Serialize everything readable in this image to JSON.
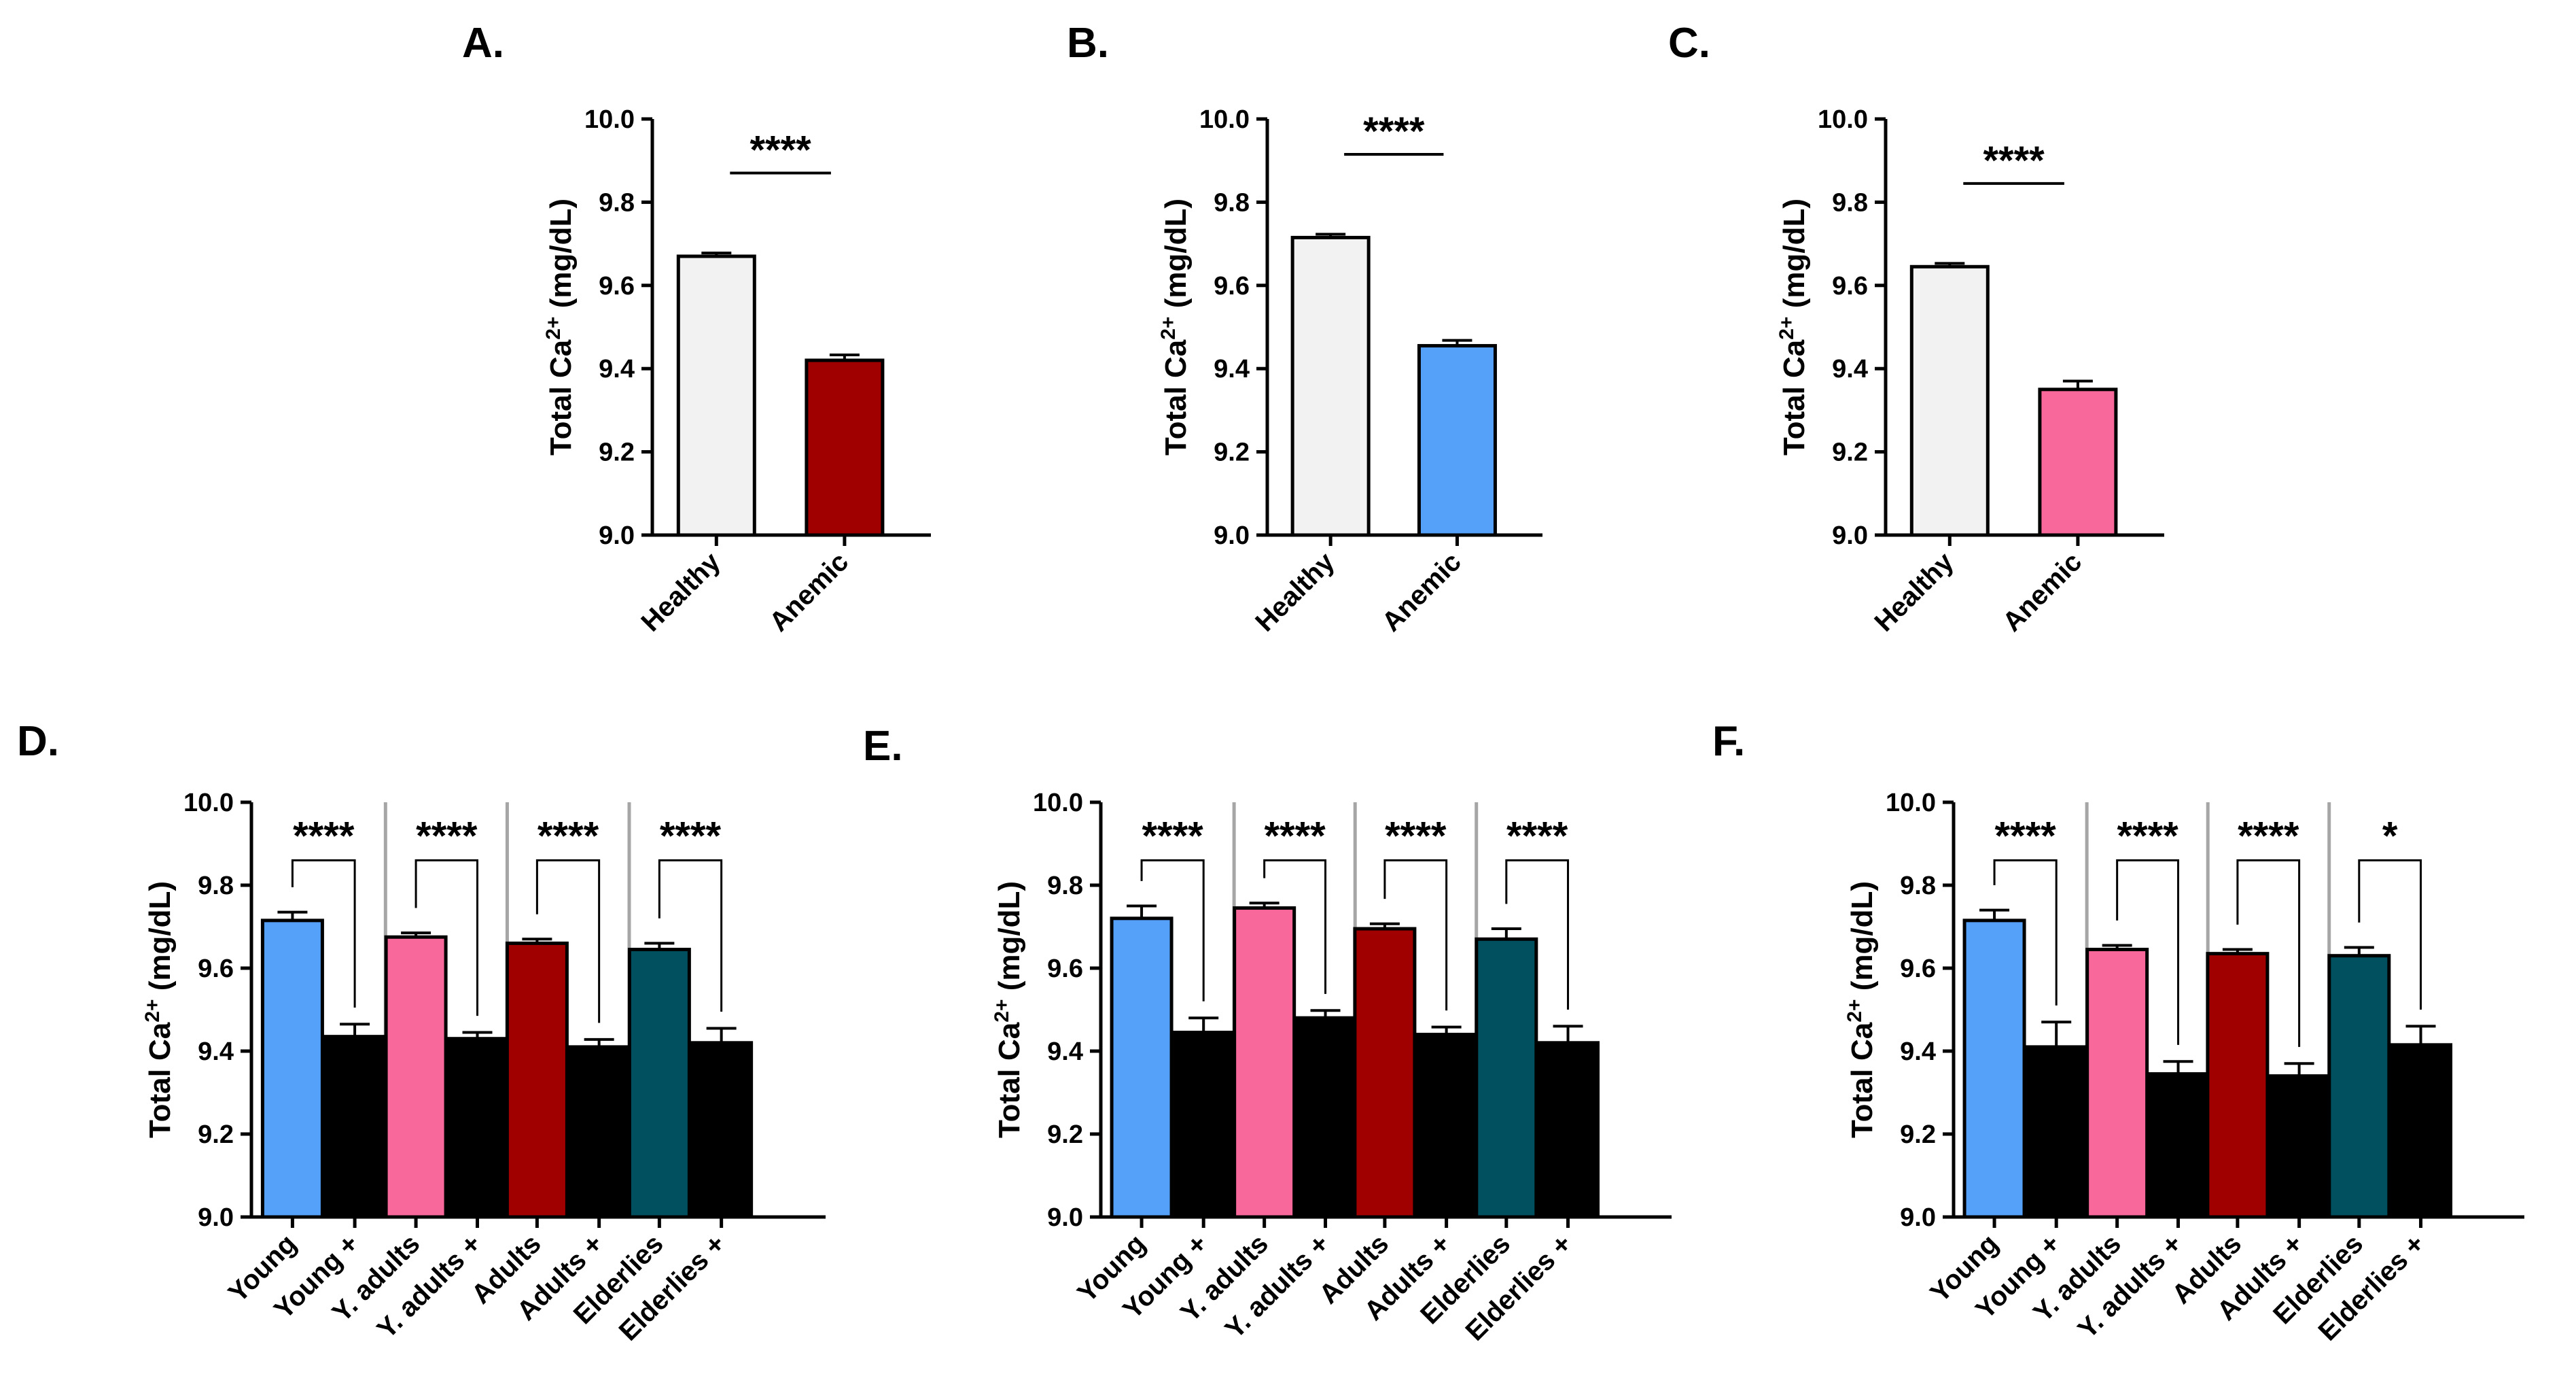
{
  "figure": {
    "panel_letters": [
      "A.",
      "B.",
      "C.",
      "D.",
      "E.",
      "F."
    ]
  },
  "colors": {
    "healthy_fill": "#f2f2f2",
    "dark_red": "#a00000",
    "blue": "#55a1fa",
    "pink": "#f8689a",
    "teal": "#00505f",
    "black": "#000000",
    "separator": "#a6a6a6"
  },
  "chart_data": [
    {
      "panel": "A.",
      "type": "bar",
      "ylabel_main": "Total Ca",
      "ylabel_sup": "2+",
      "ylabel_unit": " (mg/dL)",
      "ylim": [
        9.0,
        10.0
      ],
      "yticks": [
        "9.0",
        "9.2",
        "9.4",
        "9.6",
        "9.8",
        "10.0"
      ],
      "categories": [
        "Healthy",
        "Anemic"
      ],
      "values": [
        9.67,
        9.42
      ],
      "errors": [
        0.008,
        0.013
      ],
      "colors": [
        "#f2f2f2",
        "#a00000"
      ],
      "significance": [
        {
          "between": [
            0,
            1
          ],
          "label": "****"
        }
      ]
    },
    {
      "panel": "B.",
      "type": "bar",
      "ylabel_main": "Total Ca",
      "ylabel_sup": "2+",
      "ylabel_unit": " (mg/dL)",
      "ylim": [
        9.0,
        10.0
      ],
      "yticks": [
        "9.0",
        "9.2",
        "9.4",
        "9.6",
        "9.8",
        "10.0"
      ],
      "categories": [
        "Healthy",
        "Anemic"
      ],
      "values": [
        9.715,
        9.455
      ],
      "errors": [
        0.008,
        0.013
      ],
      "colors": [
        "#f2f2f2",
        "#55a1fa"
      ],
      "significance": [
        {
          "between": [
            0,
            1
          ],
          "label": "****"
        }
      ]
    },
    {
      "panel": "C.",
      "type": "bar",
      "ylabel_main": "Total Ca",
      "ylabel_sup": "2+",
      "ylabel_unit": " (mg/dL)",
      "ylim": [
        9.0,
        10.0
      ],
      "yticks": [
        "9.0",
        "9.2",
        "9.4",
        "9.6",
        "9.8",
        "10.0"
      ],
      "categories": [
        "Healthy",
        "Anemic"
      ],
      "values": [
        9.645,
        9.35
      ],
      "errors": [
        0.008,
        0.02
      ],
      "colors": [
        "#f2f2f2",
        "#f8689a"
      ],
      "significance": [
        {
          "between": [
            0,
            1
          ],
          "label": "****"
        }
      ]
    },
    {
      "panel": "D.",
      "type": "bar",
      "ylabel_main": "Total Ca",
      "ylabel_sup": "2+",
      "ylabel_unit": " (mg/dL)",
      "ylim": [
        9.0,
        10.0
      ],
      "yticks": [
        "9.0",
        "9.2",
        "9.4",
        "9.6",
        "9.8",
        "10.0"
      ],
      "categories": [
        "Young",
        "Young +",
        "Y. adults",
        "Y. adults +",
        "Adults",
        "Adults +",
        "Elderlies",
        "Elderlies +"
      ],
      "values": [
        9.715,
        9.435,
        9.675,
        9.43,
        9.66,
        9.41,
        9.645,
        9.42
      ],
      "errors": [
        0.02,
        0.03,
        0.01,
        0.015,
        0.01,
        0.018,
        0.015,
        0.035
      ],
      "colors": [
        "#55a1fa",
        "#000000",
        "#f8689a",
        "#000000",
        "#a00000",
        "#000000",
        "#00505f",
        "#000000"
      ],
      "significance": [
        {
          "between": [
            0,
            1
          ],
          "label": "****"
        },
        {
          "between": [
            2,
            3
          ],
          "label": "****"
        },
        {
          "between": [
            4,
            5
          ],
          "label": "****"
        },
        {
          "between": [
            6,
            7
          ],
          "label": "****"
        }
      ]
    },
    {
      "panel": "E.",
      "type": "bar",
      "ylabel_main": "Total Ca",
      "ylabel_sup": "2+",
      "ylabel_unit": " (mg/dL)",
      "ylim": [
        9.0,
        10.0
      ],
      "yticks": [
        "9.0",
        "9.2",
        "9.4",
        "9.6",
        "9.8",
        "10.0"
      ],
      "categories": [
        "Young",
        "Young +",
        "Y. adults",
        "Y. adults +",
        "Adults",
        "Adults +",
        "Elderlies",
        "Elderlies +"
      ],
      "values": [
        9.72,
        9.445,
        9.745,
        9.48,
        9.695,
        9.44,
        9.67,
        9.42
      ],
      "errors": [
        0.03,
        0.035,
        0.012,
        0.018,
        0.012,
        0.018,
        0.025,
        0.04
      ],
      "colors": [
        "#55a1fa",
        "#000000",
        "#f8689a",
        "#000000",
        "#a00000",
        "#000000",
        "#00505f",
        "#000000"
      ],
      "significance": [
        {
          "between": [
            0,
            1
          ],
          "label": "****"
        },
        {
          "between": [
            2,
            3
          ],
          "label": "****"
        },
        {
          "between": [
            4,
            5
          ],
          "label": "****"
        },
        {
          "between": [
            6,
            7
          ],
          "label": "****"
        }
      ]
    },
    {
      "panel": "F.",
      "type": "bar",
      "ylabel_main": "Total Ca",
      "ylabel_sup": "2+",
      "ylabel_unit": " (mg/dL)",
      "ylim": [
        9.0,
        10.0
      ],
      "yticks": [
        "9.0",
        "9.2",
        "9.4",
        "9.6",
        "9.8",
        "10.0"
      ],
      "categories": [
        "Young",
        "Young +",
        "Y. adults",
        "Y. adults +",
        "Adults",
        "Adults +",
        "Elderlies",
        "Elderlies +"
      ],
      "values": [
        9.715,
        9.41,
        9.645,
        9.345,
        9.635,
        9.34,
        9.63,
        9.415
      ],
      "errors": [
        0.025,
        0.06,
        0.01,
        0.03,
        0.01,
        0.03,
        0.02,
        0.045
      ],
      "colors": [
        "#55a1fa",
        "#000000",
        "#f8689a",
        "#000000",
        "#a00000",
        "#000000",
        "#00505f",
        "#000000"
      ],
      "significance": [
        {
          "between": [
            0,
            1
          ],
          "label": "****"
        },
        {
          "between": [
            2,
            3
          ],
          "label": "****"
        },
        {
          "between": [
            4,
            5
          ],
          "label": "****"
        },
        {
          "between": [
            6,
            7
          ],
          "label": "*"
        }
      ]
    }
  ]
}
